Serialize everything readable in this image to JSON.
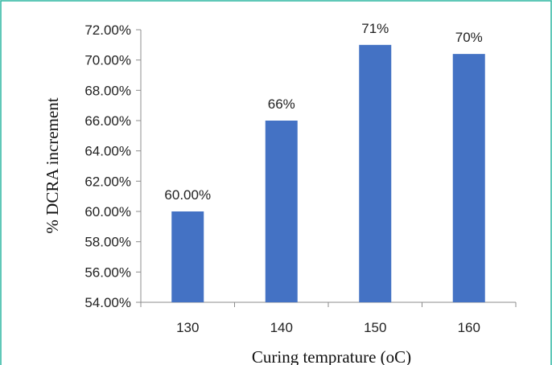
{
  "chart_data": {
    "type": "bar",
    "title": "",
    "xlabel": "Curing temprature (oC)",
    "ylabel": "% DCRA increment",
    "categories": [
      "130",
      "140",
      "150",
      "160"
    ],
    "values": [
      60.0,
      66.0,
      71.0,
      70.4
    ],
    "data_labels": [
      "60.00%",
      "66%",
      "71%",
      "70%"
    ],
    "yticks": [
      54,
      56,
      58,
      60,
      62,
      64,
      66,
      68,
      70,
      72
    ],
    "ytick_labels": [
      "54.00%",
      "56.00%",
      "58.00%",
      "60.00%",
      "62.00%",
      "64.00%",
      "66.00%",
      "68.00%",
      "70.00%",
      "72.00%"
    ],
    "ylim": [
      54,
      72
    ],
    "grid": false,
    "legend": "none",
    "bar_color": "#4472C4",
    "frame_color": "#2bb5a0",
    "axis_color": "#8c8c8c"
  }
}
